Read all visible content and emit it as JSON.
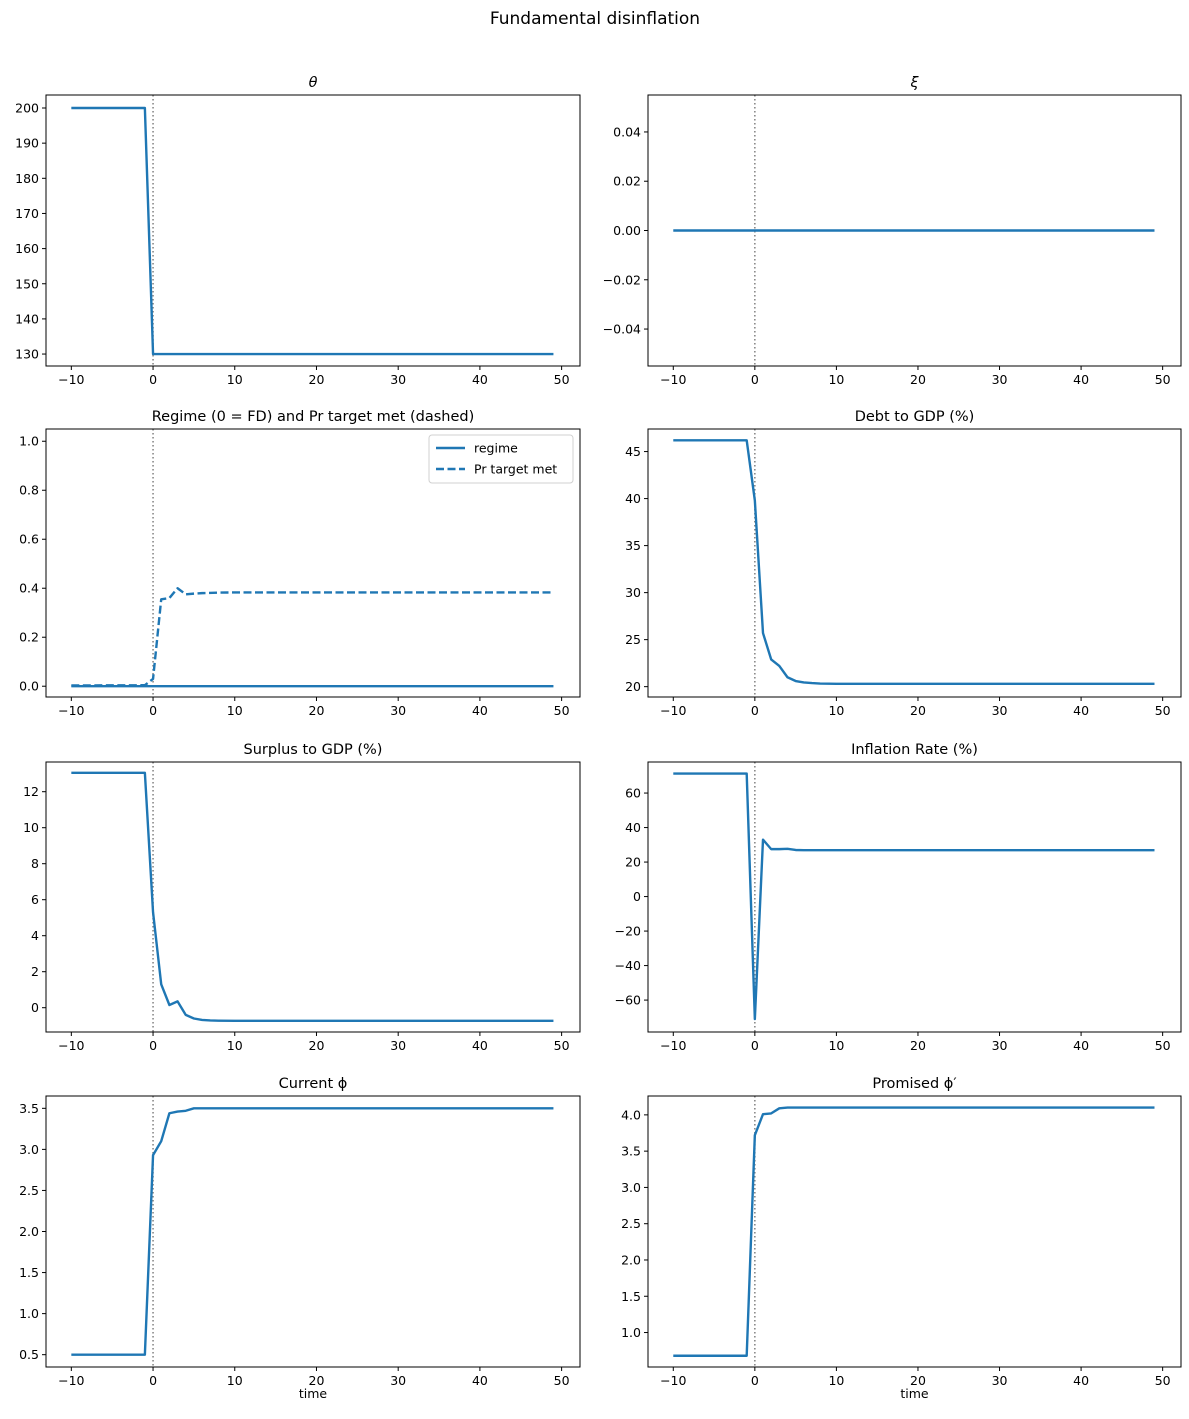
{
  "figure": {
    "suptitle": "Fundamental disinflation",
    "line_color": "#1f77b4",
    "vline_color": "#808080",
    "xlabel": "time"
  },
  "chart_data": [
    {
      "type": "line",
      "id": "theta",
      "title": "θ",
      "title_italic": true,
      "xlabel": "",
      "ylabel": "",
      "xlim": [
        -13.1,
        52.25
      ],
      "ylim": [
        126.6,
        203.7
      ],
      "xticks": [
        -10,
        0,
        10,
        20,
        30,
        40,
        50
      ],
      "yticks": [
        130,
        140,
        150,
        160,
        170,
        180,
        190,
        200
      ],
      "ytick_labels": [
        "130",
        "140",
        "150",
        "160",
        "170",
        "180",
        "190",
        "200"
      ],
      "grid": false,
      "vline_at": 0,
      "series": [
        {
          "name": "θ",
          "style": "solid",
          "points": [
            [
              -10,
              200
            ],
            [
              -1,
              200
            ],
            [
              0,
              130
            ],
            [
              49,
              130
            ]
          ]
        }
      ]
    },
    {
      "type": "line",
      "id": "xi",
      "title": "ξ",
      "title_italic": true,
      "xlabel": "",
      "ylabel": "",
      "xlim": [
        -13.1,
        52.25
      ],
      "ylim": [
        -0.055,
        0.055
      ],
      "xticks": [
        -10,
        0,
        10,
        20,
        30,
        40,
        50
      ],
      "yticks": [
        -0.04,
        -0.02,
        0.0,
        0.02,
        0.04
      ],
      "ytick_labels": [
        "−0.04",
        "−0.02",
        "0.00",
        "0.02",
        "0.04"
      ],
      "grid": false,
      "vline_at": 0,
      "series": [
        {
          "name": "ξ",
          "style": "solid",
          "points": [
            [
              -10,
              0
            ],
            [
              49,
              0
            ]
          ]
        }
      ]
    },
    {
      "type": "line",
      "id": "regime",
      "title": "Regime (0 = FD) and Pr target met (dashed)",
      "title_italic": false,
      "xlabel": "",
      "ylabel": "",
      "xlim": [
        -13.1,
        52.25
      ],
      "ylim": [
        -0.044,
        1.05
      ],
      "xticks": [
        -10,
        0,
        10,
        20,
        30,
        40,
        50
      ],
      "yticks": [
        0.0,
        0.2,
        0.4,
        0.6,
        0.8,
        1.0
      ],
      "ytick_labels": [
        "0.0",
        "0.2",
        "0.4",
        "0.6",
        "0.8",
        "1.0"
      ],
      "grid": false,
      "vline_at": 0,
      "legend": {
        "position": "upper right",
        "entries": [
          "regime",
          "Pr target met"
        ]
      },
      "series": [
        {
          "name": "regime",
          "style": "solid",
          "points": [
            [
              -10,
              0
            ],
            [
              49,
              0
            ]
          ]
        },
        {
          "name": "Pr target met",
          "style": "dashed",
          "points": [
            [
              -10,
              0.003
            ],
            [
              -1,
              0.004
            ],
            [
              0,
              0.03
            ],
            [
              1,
              0.355
            ],
            [
              2,
              0.36
            ],
            [
              3,
              0.4
            ],
            [
              4,
              0.375
            ],
            [
              5,
              0.378
            ],
            [
              6,
              0.38
            ],
            [
              8,
              0.382
            ],
            [
              10,
              0.383
            ],
            [
              49,
              0.383
            ]
          ]
        }
      ]
    },
    {
      "type": "line",
      "id": "debt",
      "title": "Debt to GDP (%)",
      "title_italic": false,
      "xlabel": "",
      "ylabel": "",
      "xlim": [
        -13.1,
        52.25
      ],
      "ylim": [
        18.9,
        47.4
      ],
      "xticks": [
        -10,
        0,
        10,
        20,
        30,
        40,
        50
      ],
      "yticks": [
        20,
        25,
        30,
        35,
        40,
        45
      ],
      "ytick_labels": [
        "20",
        "25",
        "30",
        "35",
        "40",
        "45"
      ],
      "grid": false,
      "vline_at": 0,
      "series": [
        {
          "name": "Debt to GDP",
          "style": "solid",
          "points": [
            [
              -10,
              46.2
            ],
            [
              -1,
              46.2
            ],
            [
              0,
              39.8
            ],
            [
              1,
              25.7
            ],
            [
              2,
              22.9
            ],
            [
              3,
              22.2
            ],
            [
              4,
              21.0
            ],
            [
              5,
              20.6
            ],
            [
              6,
              20.45
            ],
            [
              7,
              20.38
            ],
            [
              8,
              20.33
            ],
            [
              10,
              20.3
            ],
            [
              49,
              20.3
            ]
          ]
        }
      ]
    },
    {
      "type": "line",
      "id": "surplus",
      "title": "Surplus to GDP (%)",
      "title_italic": false,
      "xlabel": "",
      "ylabel": "",
      "xlim": [
        -13.1,
        52.25
      ],
      "ylim": [
        -1.35,
        13.65
      ],
      "xticks": [
        -10,
        0,
        10,
        20,
        30,
        40,
        50
      ],
      "yticks": [
        0,
        2,
        4,
        6,
        8,
        10,
        12
      ],
      "ytick_labels": [
        "0",
        "2",
        "4",
        "6",
        "8",
        "10",
        "12"
      ],
      "grid": false,
      "vline_at": 0,
      "series": [
        {
          "name": "Surplus to GDP",
          "style": "solid",
          "points": [
            [
              -10,
              13.05
            ],
            [
              -1,
              13.05
            ],
            [
              0,
              5.3
            ],
            [
              1,
              1.3
            ],
            [
              2,
              0.15
            ],
            [
              3,
              0.35
            ],
            [
              4,
              -0.4
            ],
            [
              5,
              -0.6
            ],
            [
              6,
              -0.68
            ],
            [
              7,
              -0.71
            ],
            [
              8,
              -0.72
            ],
            [
              10,
              -0.73
            ],
            [
              49,
              -0.73
            ]
          ]
        }
      ]
    },
    {
      "type": "line",
      "id": "inflation",
      "title": "Inflation Rate (%)",
      "title_italic": false,
      "xlabel": "",
      "ylabel": "",
      "xlim": [
        -13.1,
        52.25
      ],
      "ylim": [
        -78.5,
        78.0
      ],
      "xticks": [
        -10,
        0,
        10,
        20,
        30,
        40,
        50
      ],
      "yticks": [
        -60,
        -40,
        -20,
        0,
        20,
        40,
        60
      ],
      "ytick_labels": [
        "−60",
        "−40",
        "−20",
        "0",
        "20",
        "40",
        "60"
      ],
      "grid": false,
      "vline_at": 0,
      "series": [
        {
          "name": "Inflation",
          "style": "solid",
          "points": [
            [
              -10,
              71.3
            ],
            [
              -1,
              71.3
            ],
            [
              0,
              -71.0
            ],
            [
              1,
              33.0
            ],
            [
              2,
              27.5
            ],
            [
              3,
              27.5
            ],
            [
              4,
              27.7
            ],
            [
              5,
              27.0
            ],
            [
              6,
              26.9
            ],
            [
              49,
              26.9
            ]
          ]
        }
      ]
    },
    {
      "type": "line",
      "id": "phi",
      "title": "Current ϕ",
      "title_italic": false,
      "xlabel": "time",
      "ylabel": "",
      "xlim": [
        -13.1,
        52.25
      ],
      "ylim": [
        0.35,
        3.65
      ],
      "xticks": [
        -10,
        0,
        10,
        20,
        30,
        40,
        50
      ],
      "yticks": [
        0.5,
        1.0,
        1.5,
        2.0,
        2.5,
        3.0,
        3.5
      ],
      "ytick_labels": [
        "0.5",
        "1.0",
        "1.5",
        "2.0",
        "2.5",
        "3.0",
        "3.5"
      ],
      "grid": false,
      "vline_at": 0,
      "series": [
        {
          "name": "Current phi",
          "style": "solid",
          "points": [
            [
              -10,
              0.5
            ],
            [
              -1,
              0.5
            ],
            [
              0,
              2.93
            ],
            [
              1,
              3.1
            ],
            [
              2,
              3.44
            ],
            [
              3,
              3.46
            ],
            [
              4,
              3.47
            ],
            [
              5,
              3.5
            ],
            [
              49,
              3.5
            ]
          ]
        }
      ]
    },
    {
      "type": "line",
      "id": "phi_prime",
      "title": "Promised ϕ′",
      "title_italic": false,
      "xlabel": "time",
      "ylabel": "",
      "xlim": [
        -13.1,
        52.25
      ],
      "ylim": [
        0.525,
        4.26
      ],
      "xticks": [
        -10,
        0,
        10,
        20,
        30,
        40,
        50
      ],
      "yticks": [
        1.0,
        1.5,
        2.0,
        2.5,
        3.0,
        3.5,
        4.0
      ],
      "ytick_labels": [
        "1.0",
        "1.5",
        "2.0",
        "2.5",
        "3.0",
        "3.5",
        "4.0"
      ],
      "grid": false,
      "vline_at": 0,
      "series": [
        {
          "name": "Promised phi",
          "style": "solid",
          "points": [
            [
              -10,
              0.68
            ],
            [
              -1,
              0.68
            ],
            [
              0,
              3.72
            ],
            [
              1,
              4.01
            ],
            [
              2,
              4.02
            ],
            [
              3,
              4.09
            ],
            [
              4,
              4.1
            ],
            [
              49,
              4.1
            ]
          ]
        }
      ]
    }
  ]
}
